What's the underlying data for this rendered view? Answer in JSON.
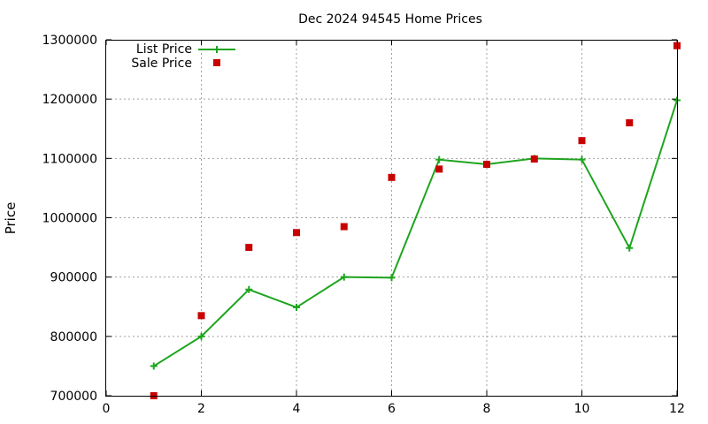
{
  "chart_data": {
    "type": "line",
    "title": "Dec 2024 94545 Home Prices",
    "xlabel": "",
    "ylabel": "Price",
    "xlim": [
      0,
      12
    ],
    "ylim": [
      700000,
      1300000
    ],
    "xticks": [
      0,
      2,
      4,
      6,
      8,
      10,
      12
    ],
    "yticks": [
      700000,
      800000,
      900000,
      1000000,
      1100000,
      1200000,
      1300000
    ],
    "grid": true,
    "legend_position": "top-left",
    "series": [
      {
        "name": "List Price",
        "style": "line+cross",
        "color": "#1ea51e",
        "x": [
          1,
          2,
          3,
          4,
          5,
          6,
          7,
          8,
          9,
          10,
          11,
          12
        ],
        "values": [
          750000,
          800000,
          879000,
          849000,
          900000,
          899000,
          1098000,
          1090000,
          1100000,
          1098000,
          949000,
          1198000
        ]
      },
      {
        "name": "Sale Price",
        "style": "square",
        "color": "#c80000",
        "x": [
          1,
          2,
          3,
          4,
          5,
          6,
          7,
          8,
          9,
          10,
          11,
          12
        ],
        "values": [
          700000,
          835000,
          950000,
          975000,
          985000,
          1068000,
          1082000,
          1090000,
          1099000,
          1130000,
          1160000,
          1290000
        ]
      }
    ]
  }
}
